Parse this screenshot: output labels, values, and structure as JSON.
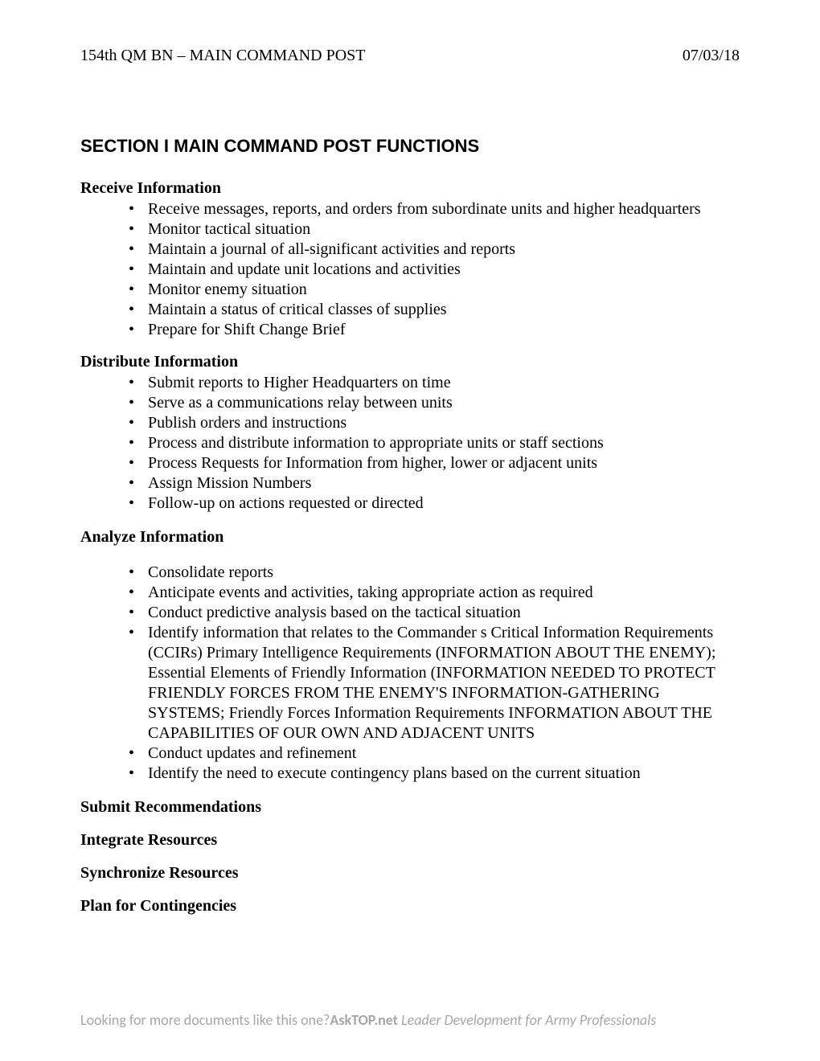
{
  "header": {
    "left": "154th QM BN – MAIN COMMAND POST",
    "right": "07/03/18"
  },
  "sectionTitle": "SECTION I MAIN COMMAND POST FUNCTIONS",
  "groups": [
    {
      "heading": "Receive Information",
      "items": [
        "Receive messages, reports, and orders from subordinate units and higher headquarters",
        "Monitor tactical situation",
        "Maintain a journal of all-significant activities and reports",
        "Maintain and update unit locations and activities",
        "Monitor enemy situation",
        "Maintain a status of critical classes of supplies",
        "Prepare for Shift Change Brief"
      ]
    },
    {
      "heading": "Distribute Information",
      "items": [
        "Submit reports to Higher Headquarters on time",
        "Serve as a communications relay between units",
        "Publish orders and instructions",
        "Process and distribute information to appropriate units or staff sections",
        "Process Requests for Information from higher, lower or adjacent units",
        "Assign Mission Numbers",
        "Follow-up on actions requested or directed"
      ]
    },
    {
      "heading": "Analyze Information",
      "spacedItems": true,
      "items": [
        "Consolidate reports",
        "Anticipate events and activities, taking appropriate action as required",
        "Conduct predictive analysis based on the tactical situation",
        "Identify information that relates to the Commander s Critical Information Requirements (CCIRs) Primary Intelligence Requirements (INFORMATION ABOUT THE ENEMY); Essential Elements of Friendly Information (INFORMATION NEEDED TO PROTECT FRIENDLY FORCES FROM THE ENEMY'S INFORMATION-GATHERING SYSTEMS; Friendly Forces Information Requirements INFORMATION ABOUT THE CAPABILITIES OF OUR OWN AND ADJACENT UNITS",
        "Conduct updates and refinement",
        "Identify the need to execute contingency plans based on the current situation"
      ]
    }
  ],
  "loneHeadings": [
    "Submit Recommendations",
    "Integrate Resources",
    "Synchronize Resources",
    "Plan for Contingencies"
  ],
  "footer": {
    "lead": "Looking for more documents like this one?",
    "bold": "AskTOP.net",
    "tail": " Leader Development for Army Professionals"
  }
}
